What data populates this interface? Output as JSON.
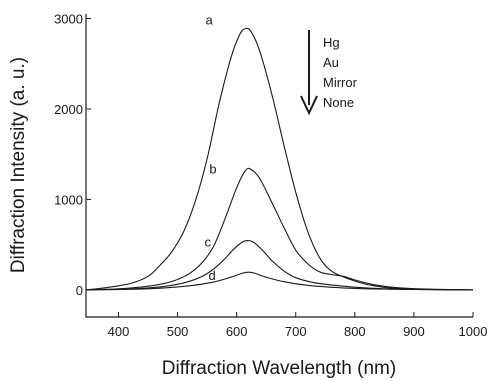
{
  "chart_data": {
    "type": "line",
    "title": "",
    "xlabel": "Diffraction Wavelength (nm)",
    "ylabel": "Diffraction Intensity (a. u.)",
    "xlim": [
      345,
      1000
    ],
    "ylim": [
      -300,
      3050
    ],
    "x_ticks": [
      400,
      500,
      600,
      700,
      800,
      900,
      1000
    ],
    "y_ticks": [
      0,
      1000,
      2000,
      3000
    ],
    "x_tick_labels": [
      "400",
      "500",
      "600",
      "700",
      "800",
      "900",
      "1000"
    ],
    "y_tick_labels": [
      "0",
      "1000",
      "2000",
      "3000"
    ],
    "grid": false,
    "legend_position": "top-right",
    "legend": {
      "entries": [
        "Hg",
        "Au",
        "Mirror",
        "None"
      ],
      "arrow": "down"
    },
    "series": [
      {
        "label": "a",
        "x": [
          345,
          380,
          420,
          450,
          470,
          490,
          510,
          530,
          550,
          570,
          590,
          605,
          615,
          625,
          640,
          660,
          680,
          700,
          720,
          740,
          760,
          790,
          820,
          860,
          900,
          950,
          1000
        ],
        "y": [
          0,
          25,
          70,
          150,
          270,
          420,
          640,
          980,
          1450,
          2050,
          2560,
          2820,
          2890,
          2850,
          2620,
          2150,
          1600,
          1080,
          650,
          360,
          210,
          120,
          60,
          20,
          8,
          3,
          0
        ]
      },
      {
        "label": "b",
        "x": [
          345,
          400,
          450,
          480,
          500,
          520,
          540,
          560,
          580,
          600,
          615,
          625,
          640,
          660,
          680,
          700,
          720,
          740,
          760,
          780,
          800,
          830,
          870,
          920,
          1000
        ],
        "y": [
          0,
          12,
          40,
          75,
          115,
          180,
          290,
          470,
          780,
          1130,
          1320,
          1330,
          1220,
          960,
          690,
          440,
          290,
          200,
          170,
          150,
          110,
          60,
          25,
          8,
          0
        ]
      },
      {
        "label": "c",
        "x": [
          345,
          420,
          480,
          520,
          550,
          575,
          595,
          610,
          620,
          630,
          645,
          660,
          680,
          700,
          730,
          760,
          800,
          850,
          900,
          1000
        ],
        "y": [
          0,
          10,
          40,
          95,
          180,
          310,
          450,
          530,
          545,
          520,
          430,
          320,
          210,
          135,
          80,
          55,
          30,
          12,
          4,
          0
        ]
      },
      {
        "label": "d",
        "x": [
          345,
          450,
          520,
          560,
          590,
          610,
          620,
          630,
          650,
          680,
          720,
          780,
          850,
          1000
        ],
        "y": [
          0,
          12,
          45,
          85,
          140,
          185,
          195,
          185,
          140,
          90,
          50,
          22,
          8,
          0
        ]
      }
    ]
  }
}
